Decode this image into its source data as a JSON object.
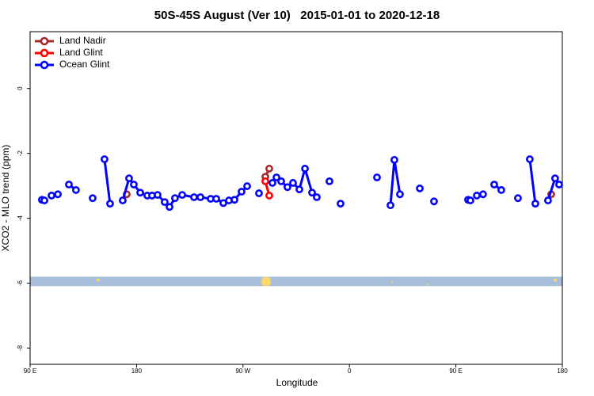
{
  "chart_data": {
    "type": "line",
    "title": "50S-45S August (Ver 10)   2015-01-01 to 2020-12-18",
    "xlabel": "Longitude",
    "ylabel": "XCO2 - MLO trend (ppm)",
    "xlim": [
      90,
      540
    ],
    "ylim": [
      -8.5,
      1.75
    ],
    "xticks": [
      {
        "value": 90,
        "label": "90 E"
      },
      180,
      {
        "value": 270,
        "label": "90 W"
      },
      {
        "value": 360,
        "label": "0"
      },
      {
        "value": 450,
        "label": "90 E"
      },
      {
        "value": 540,
        "label": "180"
      }
    ],
    "yticks": [
      -8,
      -6,
      -4,
      -2,
      0
    ],
    "legend": "top-left",
    "band": {
      "ylim": [
        -6.09,
        -5.8
      ],
      "color": "#a8bfdc"
    },
    "highlights": {
      "x": [
        147.5,
        289.6,
        396,
        426,
        534
      ],
      "y": [
        -5.9,
        -5.95,
        -5.95,
        -6.05,
        -5.9
      ],
      "sizes": [
        2,
        6,
        1,
        1,
        2
      ],
      "color": "#ffd966"
    },
    "series": [
      {
        "name": "Land Nadir",
        "color": "#a52a2a",
        "x": [
          171.7,
          null,
          288.9,
          292.2,
          null,
          530.6
        ],
        "values": [
          -3.26,
          null,
          -2.72,
          -2.47,
          null,
          -3.26
        ]
      },
      {
        "name": "Land Glint",
        "color": "#ff0000",
        "x": [
          288.9,
          292.2
        ],
        "values": [
          -2.86,
          -3.3
        ]
      },
      {
        "name": "Ocean Glint",
        "color": "#0000ff",
        "x": [
          100.0,
          102.1,
          null,
          108.1,
          113.5,
          null,
          122.8,
          128.8,
          null,
          142.9,
          null,
          152.9,
          157.6,
          null,
          168.3,
          173.7,
          177.7,
          183.1,
          189.1,
          193.1,
          197.8,
          203.8,
          207.9,
          212.5,
          218.6,
          228.6,
          234.0,
          242.7,
          247.4,
          253.4,
          258.1,
          262.8,
          268.8,
          273.5,
          null,
          283.5,
          null,
          294.9,
          298.3,
          302.3,
          307.6,
          312.3,
          317.7,
          322.4,
          328.4,
          332.4,
          null,
          343.1,
          null,
          352.5,
          null,
          383.3,
          null,
          394.7,
          398.0,
          402.7,
          null,
          419.5,
          null,
          431.5,
          null,
          460.3,
          462.3,
          null,
          467.7,
          473.0,
          null,
          482.4,
          488.4,
          null,
          502.5,
          null,
          512.5,
          517.2,
          null,
          527.9,
          533.9,
          537.3
        ],
        "values": [
          -3.43,
          -3.45,
          null,
          -3.3,
          -3.26,
          null,
          -2.96,
          -3.13,
          null,
          -3.38,
          null,
          -2.18,
          -3.55,
          null,
          -3.45,
          -2.77,
          -2.96,
          -3.21,
          -3.3,
          -3.3,
          -3.28,
          -3.5,
          -3.65,
          -3.38,
          -3.28,
          -3.35,
          -3.35,
          -3.4,
          -3.4,
          -3.53,
          -3.45,
          -3.43,
          -3.18,
          -3.01,
          null,
          -3.23,
          null,
          -2.91,
          -2.74,
          -2.86,
          -3.04,
          -2.91,
          -3.11,
          -2.47,
          -3.21,
          -3.35,
          null,
          -2.86,
          null,
          -3.55,
          null,
          -2.74,
          null,
          -3.6,
          -2.2,
          -3.26,
          null,
          -3.08,
          null,
          -3.48,
          null,
          -3.43,
          -3.45,
          null,
          -3.3,
          -3.26,
          null,
          -2.96,
          -3.13,
          null,
          -3.38,
          null,
          -2.18,
          -3.55,
          null,
          -3.45,
          -2.77,
          -2.96
        ]
      }
    ]
  }
}
